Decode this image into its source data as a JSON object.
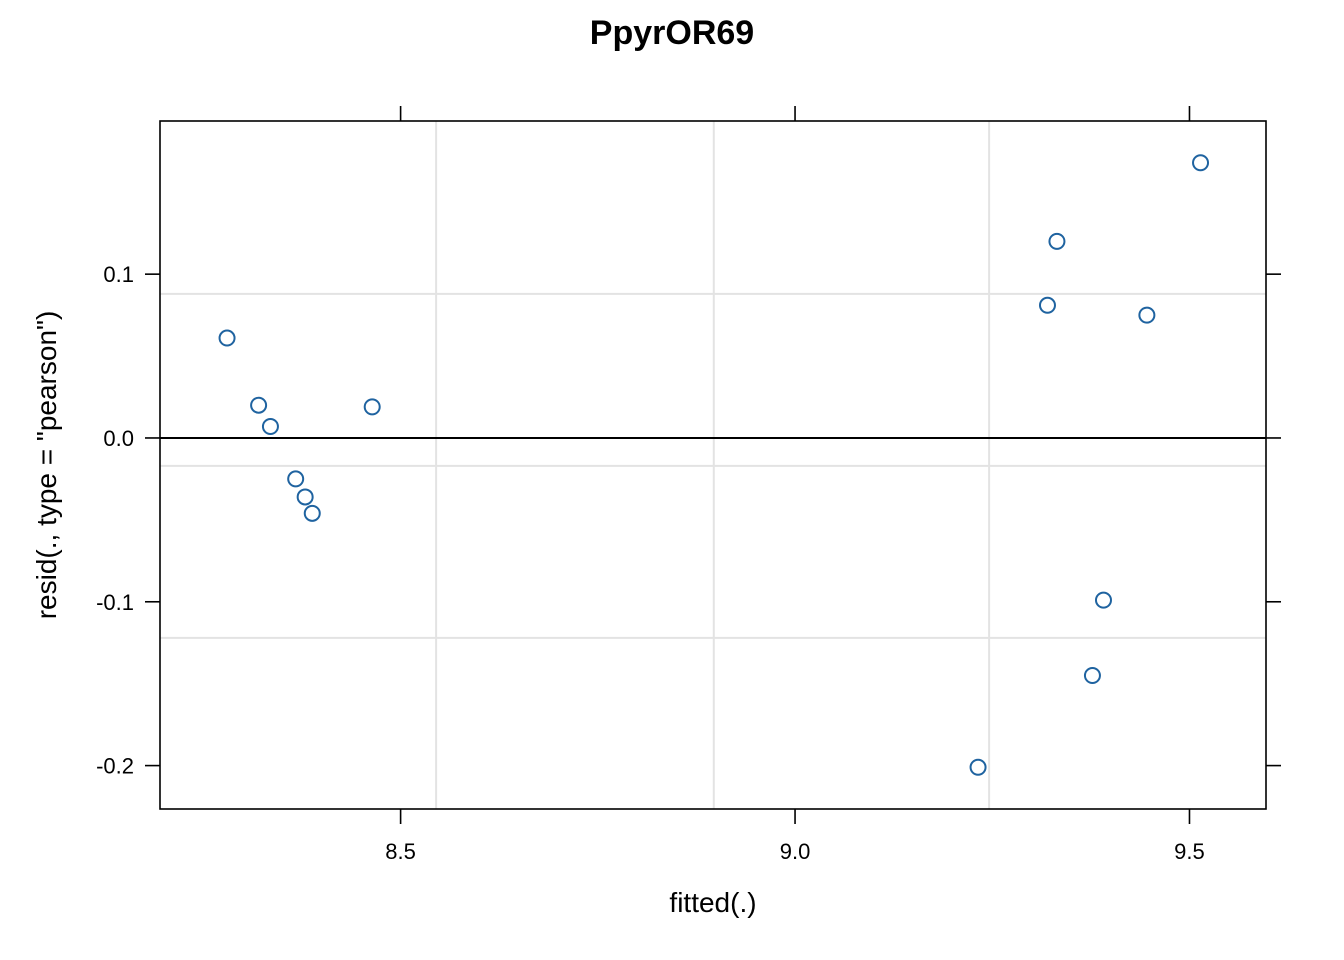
{
  "chart_data": {
    "type": "scatter",
    "title": "PpyrOR69",
    "xlabel": "fitted(.)",
    "ylabel": "resid(., type = \"pearson\")",
    "xlim": [
      8.195,
      9.597
    ],
    "ylim": [
      -0.2265,
      0.1935
    ],
    "x_ticks": [
      8.5,
      9.0,
      9.5
    ],
    "x_tick_labels": [
      "8.5",
      "9.0",
      "9.5"
    ],
    "y_ticks": [
      -0.2,
      -0.1,
      0.0,
      0.1
    ],
    "y_tick_labels": [
      "-0.2",
      "-0.1",
      "0.0",
      "0.1"
    ],
    "x_grid": [
      8.545,
      8.897,
      9.246
    ],
    "y_grid": [
      0.088,
      -0.017,
      -0.122
    ],
    "reference_line_y": 0,
    "grid": true,
    "point_color": "#1f63a0",
    "points": [
      {
        "x": 8.28,
        "y": 0.061
      },
      {
        "x": 8.32,
        "y": 0.02
      },
      {
        "x": 8.335,
        "y": 0.007
      },
      {
        "x": 8.367,
        "y": -0.025
      },
      {
        "x": 8.379,
        "y": -0.036
      },
      {
        "x": 8.388,
        "y": -0.046
      },
      {
        "x": 8.464,
        "y": 0.019
      },
      {
        "x": 9.232,
        "y": -0.201
      },
      {
        "x": 9.32,
        "y": 0.081
      },
      {
        "x": 9.332,
        "y": 0.12
      },
      {
        "x": 9.377,
        "y": -0.145
      },
      {
        "x": 9.391,
        "y": -0.099
      },
      {
        "x": 9.446,
        "y": 0.075
      },
      {
        "x": 9.514,
        "y": 0.168
      }
    ]
  }
}
